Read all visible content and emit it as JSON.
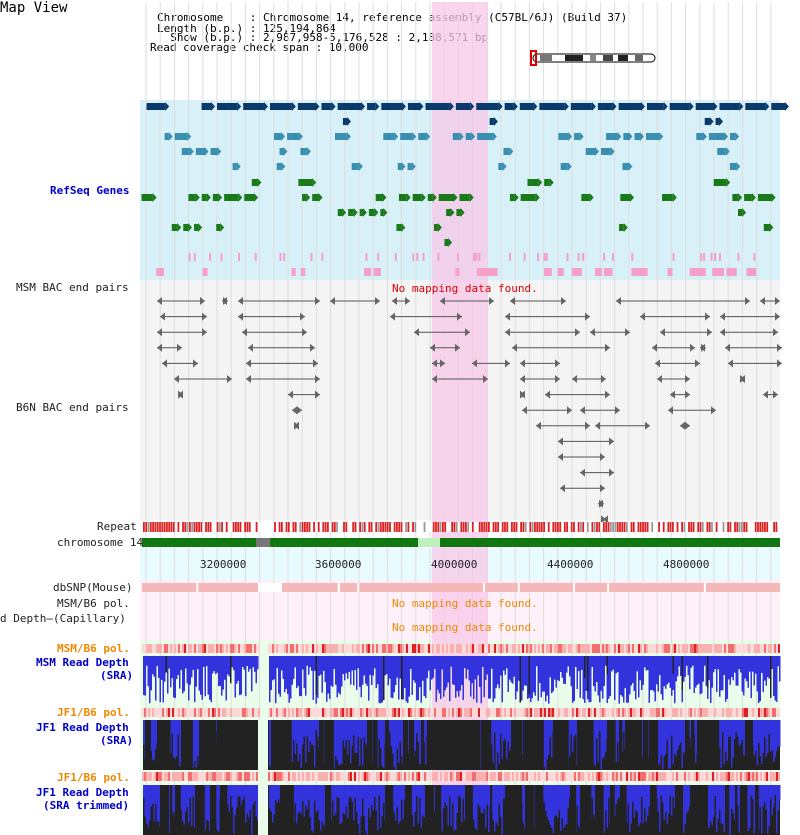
{
  "header": {
    "title": "Map View",
    "info_lines": [
      "Chromosome    : Chromosome 14, reference assembly (C57BL/6J) (Build 37)",
      "Length (b.p.) : 125,194,864",
      "  Show (b.p.) : 2,987,958-5,176,528 : 2,188,571 bp",
      "Read coverage check span : 10,000"
    ]
  },
  "tracks": {
    "refseq": "RefSeq Genes",
    "msm_bac": "MSM BAC end pairs",
    "b6n_bac": "B6N BAC end pairs",
    "repeat": "Repeat",
    "chromosome": "chromosome 14",
    "dbsnp": "dbSNP(Mouse)",
    "msm_b6_pol_cap": "MSM/B6 pol.",
    "read_depth_cap": "d Depth̶(Capillary)",
    "msm_b6_pol": "MSM/B6 pol.",
    "msm_read_depth": "MSM Read Depth",
    "msm_read_depth_sub": "(SRA)",
    "jf1_b6_pol_1": "JF1/B6 pol.",
    "jf1_read_depth": "JF1 Read Depth",
    "jf1_read_depth_sub": "(SRA)",
    "jf1_b6_pol_2": "JF1/B6 pol.",
    "jf1_read_depth_trim": "JF1 Read Depth",
    "jf1_read_depth_trim_sub": "(SRA trimmed)"
  },
  "messages": {
    "no_mapping_bac": "No mapping data found.",
    "no_mapping_pol": "No mapping data found.",
    "no_mapping_depth": "No mapping data found."
  },
  "axis": {
    "ticks": [
      "3200000",
      "3600000",
      "4000000",
      "4400000",
      "4800000"
    ]
  },
  "colors": {
    "refseq_bg": "#d8f0f8",
    "gene_dark": "#0a3a6a",
    "gene_teal": "#3a8fb0",
    "gene_green": "#1a7a1a",
    "highlight": "#f8c8e8",
    "repeat": "#dd2222",
    "chrom": "#117711",
    "depth_blue": "#3333dd",
    "depth_black": "#222222"
  }
}
